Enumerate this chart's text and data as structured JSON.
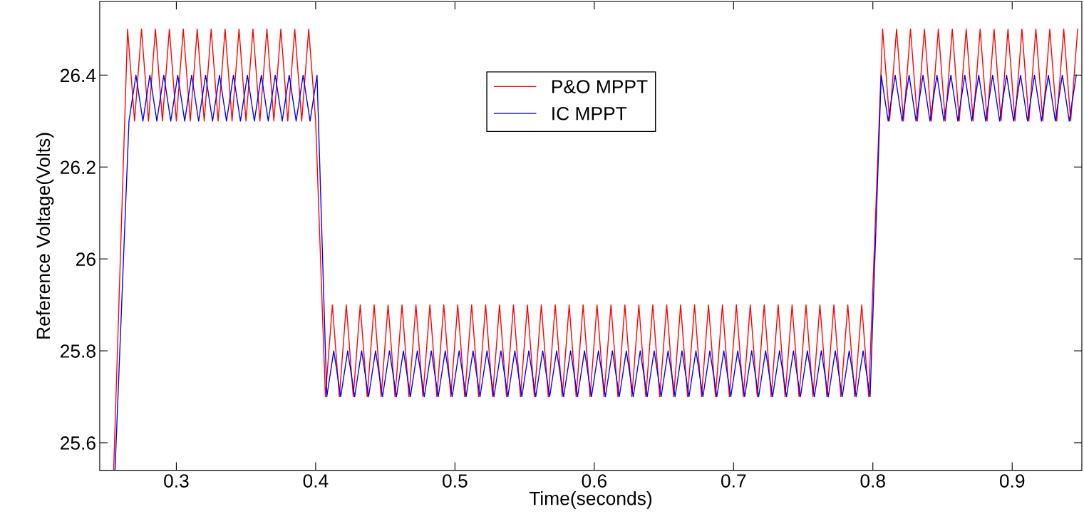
{
  "chart_data": {
    "type": "line",
    "xlabel": "Time(seconds)",
    "ylabel": "Reference Voltage(Volts)",
    "xlim": [
      0.245,
      0.95
    ],
    "xticks": [
      0.3,
      0.4,
      0.5,
      0.6,
      0.7,
      0.8,
      0.9
    ],
    "ylim": [
      25.54,
      26.56
    ],
    "yticks": [
      25.6,
      25.8,
      26,
      26.2,
      26.4
    ],
    "grid": false,
    "legend": "top",
    "marker": "none",
    "line_style": "solid",
    "series": [
      {
        "name": "P&O MPPT",
        "color": "#ff0000",
        "x": [
          0.255,
          0.265,
          0.27,
          0.275,
          0.28,
          0.285,
          0.29,
          0.295,
          0.3,
          0.305,
          0.31,
          0.315,
          0.32,
          0.325,
          0.33,
          0.335,
          0.34,
          0.345,
          0.35,
          0.355,
          0.36,
          0.365,
          0.37,
          0.375,
          0.38,
          0.385,
          0.39,
          0.395,
          0.4,
          0.407,
          0.412,
          0.417,
          0.422,
          0.427,
          0.432,
          0.437,
          0.442,
          0.447,
          0.452,
          0.457,
          0.462,
          0.467,
          0.472,
          0.477,
          0.482,
          0.487,
          0.492,
          0.497,
          0.502,
          0.507,
          0.512,
          0.517,
          0.522,
          0.527,
          0.532,
          0.537,
          0.542,
          0.547,
          0.552,
          0.557,
          0.562,
          0.567,
          0.572,
          0.577,
          0.582,
          0.587,
          0.592,
          0.597,
          0.602,
          0.607,
          0.612,
          0.617,
          0.622,
          0.627,
          0.632,
          0.637,
          0.642,
          0.647,
          0.652,
          0.657,
          0.662,
          0.667,
          0.672,
          0.677,
          0.682,
          0.687,
          0.692,
          0.697,
          0.702,
          0.707,
          0.712,
          0.717,
          0.722,
          0.727,
          0.732,
          0.737,
          0.742,
          0.747,
          0.752,
          0.757,
          0.762,
          0.767,
          0.772,
          0.777,
          0.782,
          0.787,
          0.792,
          0.797,
          0.807,
          0.812,
          0.817,
          0.822,
          0.827,
          0.832,
          0.837,
          0.842,
          0.847,
          0.852,
          0.857,
          0.862,
          0.867,
          0.872,
          0.877,
          0.882,
          0.887,
          0.892,
          0.897,
          0.902,
          0.907,
          0.912,
          0.917,
          0.922,
          0.927,
          0.932,
          0.937,
          0.942,
          0.947
        ],
        "values": [
          25.54,
          26.5,
          26.3,
          26.5,
          26.3,
          26.5,
          26.3,
          26.5,
          26.3,
          26.5,
          26.3,
          26.5,
          26.3,
          26.5,
          26.3,
          26.5,
          26.3,
          26.5,
          26.3,
          26.5,
          26.3,
          26.5,
          26.3,
          26.5,
          26.3,
          26.5,
          26.3,
          26.5,
          26.3,
          25.7,
          25.9,
          25.7,
          25.9,
          25.7,
          25.9,
          25.7,
          25.9,
          25.7,
          25.9,
          25.7,
          25.9,
          25.7,
          25.9,
          25.7,
          25.9,
          25.7,
          25.9,
          25.7,
          25.9,
          25.7,
          25.9,
          25.7,
          25.9,
          25.7,
          25.9,
          25.7,
          25.9,
          25.7,
          25.9,
          25.7,
          25.9,
          25.7,
          25.9,
          25.7,
          25.9,
          25.7,
          25.9,
          25.7,
          25.9,
          25.7,
          25.9,
          25.7,
          25.9,
          25.7,
          25.9,
          25.7,
          25.9,
          25.7,
          25.9,
          25.7,
          25.9,
          25.7,
          25.9,
          25.7,
          25.9,
          25.7,
          25.9,
          25.7,
          25.9,
          25.7,
          25.9,
          25.7,
          25.9,
          25.7,
          25.9,
          25.7,
          25.9,
          25.7,
          25.9,
          25.7,
          25.9,
          25.7,
          25.9,
          25.7,
          25.9,
          25.7,
          25.9,
          25.7,
          26.5,
          26.3,
          26.5,
          26.3,
          26.5,
          26.3,
          26.5,
          26.3,
          26.5,
          26.3,
          26.5,
          26.3,
          26.5,
          26.3,
          26.5,
          26.3,
          26.5,
          26.3,
          26.5,
          26.3,
          26.5,
          26.3,
          26.5,
          26.3,
          26.5,
          26.3,
          26.5,
          26.3,
          26.5
        ]
      },
      {
        "name": "IC MPPT",
        "color": "#0000ff",
        "x": [
          0.256,
          0.266,
          0.271,
          0.276,
          0.281,
          0.286,
          0.291,
          0.296,
          0.301,
          0.306,
          0.311,
          0.316,
          0.321,
          0.326,
          0.331,
          0.336,
          0.341,
          0.346,
          0.351,
          0.356,
          0.361,
          0.366,
          0.371,
          0.376,
          0.381,
          0.386,
          0.391,
          0.396,
          0.401,
          0.408,
          0.413,
          0.418,
          0.423,
          0.428,
          0.433,
          0.438,
          0.443,
          0.448,
          0.453,
          0.458,
          0.463,
          0.468,
          0.473,
          0.478,
          0.483,
          0.488,
          0.493,
          0.498,
          0.503,
          0.508,
          0.513,
          0.518,
          0.523,
          0.528,
          0.533,
          0.538,
          0.543,
          0.548,
          0.553,
          0.558,
          0.563,
          0.568,
          0.573,
          0.578,
          0.583,
          0.588,
          0.593,
          0.598,
          0.603,
          0.608,
          0.613,
          0.618,
          0.623,
          0.628,
          0.633,
          0.638,
          0.643,
          0.648,
          0.653,
          0.658,
          0.663,
          0.668,
          0.673,
          0.678,
          0.683,
          0.688,
          0.693,
          0.698,
          0.703,
          0.708,
          0.713,
          0.718,
          0.723,
          0.728,
          0.733,
          0.738,
          0.743,
          0.748,
          0.753,
          0.758,
          0.763,
          0.768,
          0.773,
          0.778,
          0.783,
          0.788,
          0.793,
          0.798,
          0.806,
          0.811,
          0.816,
          0.821,
          0.826,
          0.831,
          0.836,
          0.841,
          0.846,
          0.851,
          0.856,
          0.861,
          0.866,
          0.871,
          0.876,
          0.881,
          0.886,
          0.891,
          0.896,
          0.901,
          0.906,
          0.911,
          0.916,
          0.921,
          0.926,
          0.931,
          0.936,
          0.941,
          0.946
        ],
        "values": [
          25.54,
          26.3,
          26.4,
          26.3,
          26.4,
          26.3,
          26.4,
          26.3,
          26.4,
          26.3,
          26.4,
          26.3,
          26.4,
          26.3,
          26.4,
          26.3,
          26.4,
          26.3,
          26.4,
          26.3,
          26.4,
          26.3,
          26.4,
          26.3,
          26.4,
          26.3,
          26.4,
          26.3,
          26.4,
          25.7,
          25.8,
          25.7,
          25.8,
          25.7,
          25.8,
          25.7,
          25.8,
          25.7,
          25.8,
          25.7,
          25.8,
          25.7,
          25.8,
          25.7,
          25.8,
          25.7,
          25.8,
          25.7,
          25.8,
          25.7,
          25.8,
          25.7,
          25.8,
          25.7,
          25.8,
          25.7,
          25.8,
          25.7,
          25.8,
          25.7,
          25.8,
          25.7,
          25.8,
          25.7,
          25.8,
          25.7,
          25.8,
          25.7,
          25.8,
          25.7,
          25.8,
          25.7,
          25.8,
          25.7,
          25.8,
          25.7,
          25.8,
          25.7,
          25.8,
          25.7,
          25.8,
          25.7,
          25.8,
          25.7,
          25.8,
          25.7,
          25.8,
          25.7,
          25.8,
          25.7,
          25.8,
          25.7,
          25.8,
          25.7,
          25.8,
          25.7,
          25.8,
          25.7,
          25.8,
          25.7,
          25.8,
          25.7,
          25.8,
          25.7,
          25.8,
          25.7,
          25.8,
          25.7,
          26.4,
          26.3,
          26.4,
          26.3,
          26.4,
          26.3,
          26.4,
          26.3,
          26.4,
          26.3,
          26.4,
          26.3,
          26.4,
          26.3,
          26.4,
          26.3,
          26.4,
          26.3,
          26.4,
          26.3,
          26.4,
          26.3,
          26.4,
          26.3,
          26.4,
          26.3,
          26.4,
          26.3,
          26.4
        ]
      }
    ]
  }
}
